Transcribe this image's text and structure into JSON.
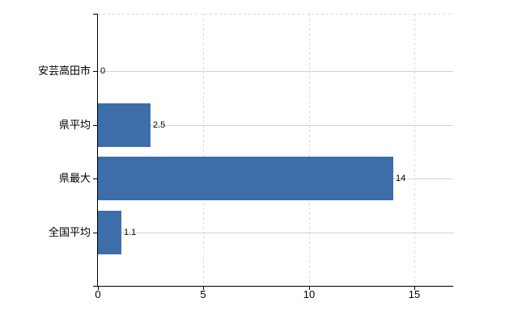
{
  "chart_data": {
    "type": "bar",
    "orientation": "horizontal",
    "title": "",
    "xlabel": "",
    "ylabel": "",
    "categories": [
      "安芸高田市",
      "県平均",
      "県最大",
      "全国平均"
    ],
    "values": [
      0,
      2.5,
      14,
      1.1
    ],
    "x_ticks": [
      0,
      5,
      10,
      15
    ],
    "xlim": [
      0,
      16.84
    ],
    "grid": "on",
    "legend": "none",
    "colors": {
      "bar": "#3d6ea9",
      "axis": "#000000",
      "vertical_gridline": "#d9d9d9",
      "horizontal_gridline": "#ccd6cc",
      "plot_top_border": "#d9d9d9",
      "text": "#000000"
    }
  }
}
